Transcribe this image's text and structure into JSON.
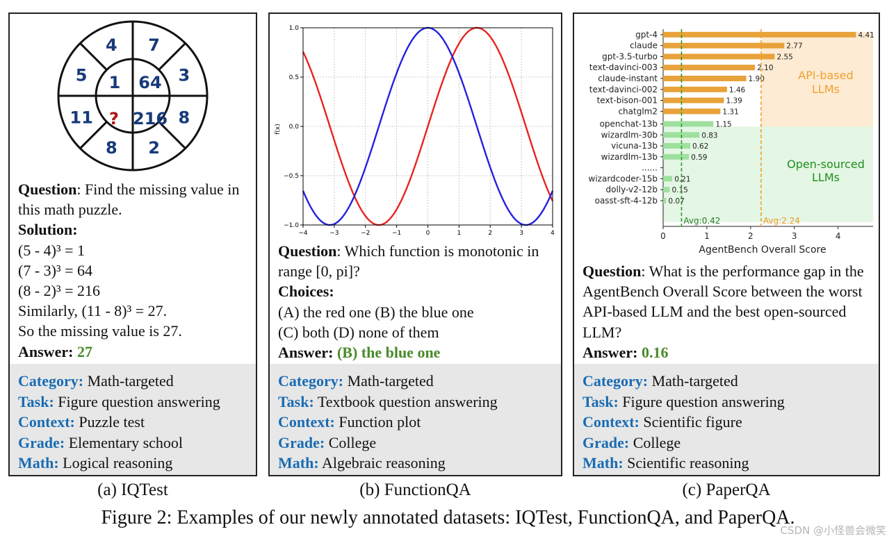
{
  "panels": {
    "iqtest": {
      "puzzle": {
        "outer": [
          "4",
          "7",
          "3",
          "8",
          "2",
          "8",
          "11",
          "5"
        ],
        "inner": [
          "1",
          "64",
          "216",
          "?"
        ]
      },
      "question_label": "Question",
      "question_text": ": Find the missing value in this math puzzle.",
      "solution_label": "Solution:",
      "solution_lines": [
        "(5 - 4)³ = 1",
        "(7 - 3)³ = 64",
        "(8 - 2)³ = 216",
        "Similarly, (11 - 8)³ = 27.",
        "So the missing value is 27."
      ],
      "answer_label": "Answer:",
      "answer_value": "27",
      "meta": [
        {
          "key": "Category:",
          "value": "Math-targeted"
        },
        {
          "key": "Task:",
          "value": "Figure question answering"
        },
        {
          "key": "Context:",
          "value": "Puzzle test"
        },
        {
          "key": "Grade:",
          "value": "Elementary school"
        },
        {
          "key": "Math:",
          "value": "Logical reasoning"
        }
      ],
      "caption": "(a) IQTest"
    },
    "functionqa": {
      "question_label": "Question",
      "question_text": ": Which function is monotonic in range [0, pi]?",
      "choices_label": "Choices:",
      "choices_lines": [
        "(A) the red one (B) the blue one",
        "(C) both (D) none of them"
      ],
      "answer_label": "Answer:",
      "answer_value": "(B) the blue one",
      "meta": [
        {
          "key": "Category:",
          "value": "Math-targeted"
        },
        {
          "key": "Task:",
          "value": "Textbook question answering"
        },
        {
          "key": "Context:",
          "value": "Function plot"
        },
        {
          "key": "Grade:",
          "value": "College"
        },
        {
          "key": "Math:",
          "value": "Algebraic reasoning"
        }
      ],
      "caption": "(b) FunctionQA"
    },
    "paperqa": {
      "question_label": "Question",
      "question_text": ": What is the performance gap in the AgentBench Overall Score between the worst API-based LLM and the best open-sourced LLM?",
      "answer_label": "Answer:",
      "answer_value": "0.16",
      "meta": [
        {
          "key": "Category:",
          "value": "Math-targeted"
        },
        {
          "key": "Task:",
          "value": "Figure question answering"
        },
        {
          "key": "Context:",
          "value": "Scientific figure"
        },
        {
          "key": "Grade:",
          "value": "College"
        },
        {
          "key": "Math:",
          "value": "Scientific reasoning"
        }
      ],
      "caption": "(c) PaperQA"
    }
  },
  "figure_caption": "Figure 2: Examples of our newly annotated datasets: IQTest, FunctionQA, and PaperQA.",
  "watermark": "CSDN @小怪兽会微笑",
  "chart_data": [
    {
      "type": "line",
      "title": "",
      "xlabel": "",
      "ylabel": "f(x)",
      "xlim": [
        -4,
        4
      ],
      "ylim": [
        -1.0,
        1.0
      ],
      "xticks": [
        "−4",
        "−3",
        "−2",
        "−1",
        "0",
        "1",
        "2",
        "3",
        "4"
      ],
      "yticks": [
        "1.0",
        "0.5",
        "0.0",
        "−0.5",
        "−1.0"
      ],
      "grid": true,
      "series": [
        {
          "function": "sin(x)",
          "color": "#e8231f"
        },
        {
          "function": "cos(x)",
          "color": "#2222e0"
        }
      ]
    },
    {
      "type": "bar",
      "orientation": "horizontal",
      "xlabel": "AgentBench Overall Score",
      "xlim": [
        0,
        4.8
      ],
      "xticks": [
        "0",
        "1",
        "2",
        "3",
        "4"
      ],
      "groups": [
        {
          "label": "API-based\nLLMs",
          "color": "#e8a23a",
          "bg": "#fdebd3",
          "categories": [
            "gpt-4",
            "claude",
            "gpt-3.5-turbo",
            "text-davinci-003",
            "claude-instant",
            "text-davinci-002",
            "text-bison-001",
            "chatglm2"
          ],
          "values": [
            4.41,
            2.77,
            2.55,
            2.1,
            1.9,
            1.46,
            1.39,
            1.31
          ],
          "labels": [
            "4.41",
            "2.77",
            "2.55",
            "2.10",
            "1.90",
            "1.46",
            "1.39",
            "1.31"
          ],
          "avg": 2.24,
          "avg_label": "Avg:2.24"
        },
        {
          "label": "Open-sourced\nLLMs",
          "color": "#9ee09e",
          "bg": "#e4f6e4",
          "categories": [
            "openchat-13b",
            "wizardlm-30b",
            "vicuna-13b",
            "wizardlm-13b",
            "......",
            "wizardcoder-15b",
            "dolly-v2-12b",
            "oasst-sft-4-12b"
          ],
          "values": [
            1.15,
            0.83,
            0.62,
            0.59,
            null,
            0.21,
            0.15,
            0.07
          ],
          "labels": [
            "1.15",
            "0.83",
            "0.62",
            "0.59",
            "",
            "0.21",
            "0.15",
            "0.07"
          ],
          "avg": 0.42,
          "avg_label": "Avg:0.42",
          "avg_color": "#2a9a2a"
        }
      ],
      "legend_colors": {
        "api_text": "#f0a030",
        "open_text": "#1f8f1f"
      }
    }
  ]
}
